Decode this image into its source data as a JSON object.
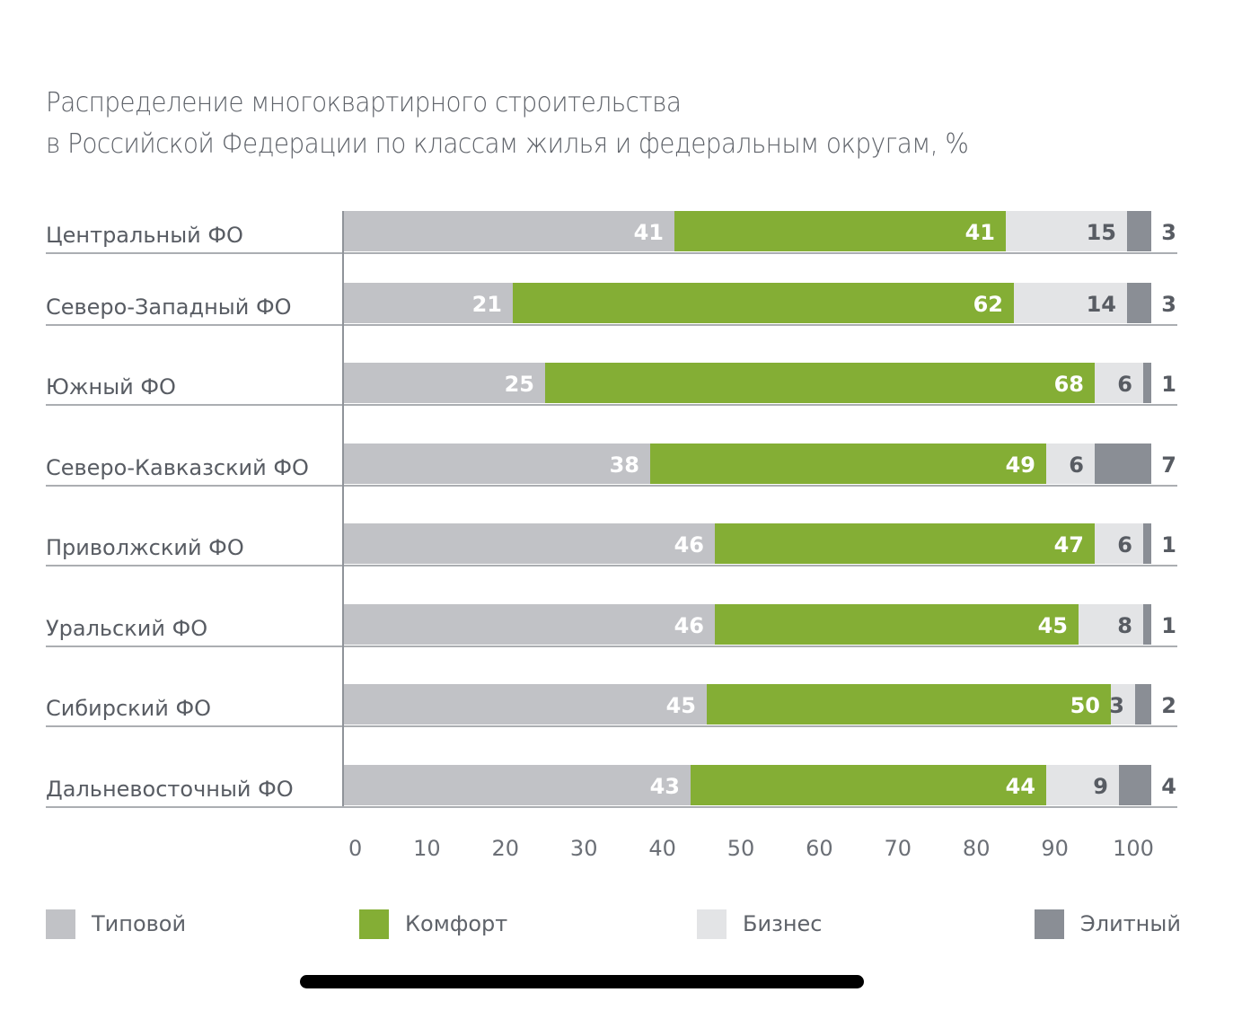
{
  "title": {
    "line1": "Распределение многоквартирного строительства",
    "line2": "в Российской Федерации по классам жилья и федеральным округам, %"
  },
  "chart_data": {
    "type": "bar",
    "orientation": "horizontal",
    "stacked": true,
    "title": "Распределение многоквартирного строительства в Российской Федерации по классам жилья и федеральным округам, %",
    "xlabel": "",
    "ylabel": "",
    "xlim": [
      0,
      100
    ],
    "x_ticks": [
      0,
      10,
      20,
      30,
      40,
      50,
      60,
      70,
      80,
      90,
      100
    ],
    "grid": false,
    "legend_position": "bottom",
    "categories": [
      "Центральный ФО",
      "Северо-Западный ФО",
      "Южный ФО",
      "Северо-Кавказский ФО",
      "Приволжский ФО",
      "Уральский ФО",
      "Сибирский ФО",
      "Дальневосточный ФО"
    ],
    "series": [
      {
        "name": "Типовой",
        "color": "#c1c2c6",
        "label_color": "#ffffff",
        "values": [
          41,
          21,
          25,
          38,
          46,
          46,
          45,
          43
        ]
      },
      {
        "name": "Комфорт",
        "color": "#84ae35",
        "label_color": "#ffffff",
        "values": [
          41,
          62,
          68,
          49,
          47,
          45,
          50,
          44
        ]
      },
      {
        "name": "Бизнес",
        "color": "#e3e4e6",
        "label_color": "#585c63",
        "values": [
          15,
          14,
          6,
          6,
          6,
          8,
          3,
          9
        ]
      },
      {
        "name": "Элитный",
        "color": "#8a8e95",
        "label_color": "#585c63",
        "values": [
          3,
          3,
          1,
          7,
          1,
          1,
          2,
          4
        ],
        "label_outside": true
      }
    ]
  },
  "legend": [
    {
      "label": "Типовой",
      "color": "#c1c2c6"
    },
    {
      "label": "Комфорт",
      "color": "#84ae35"
    },
    {
      "label": "Бизнес",
      "color": "#e3e4e6"
    },
    {
      "label": "Элитный",
      "color": "#8a8e95"
    }
  ]
}
